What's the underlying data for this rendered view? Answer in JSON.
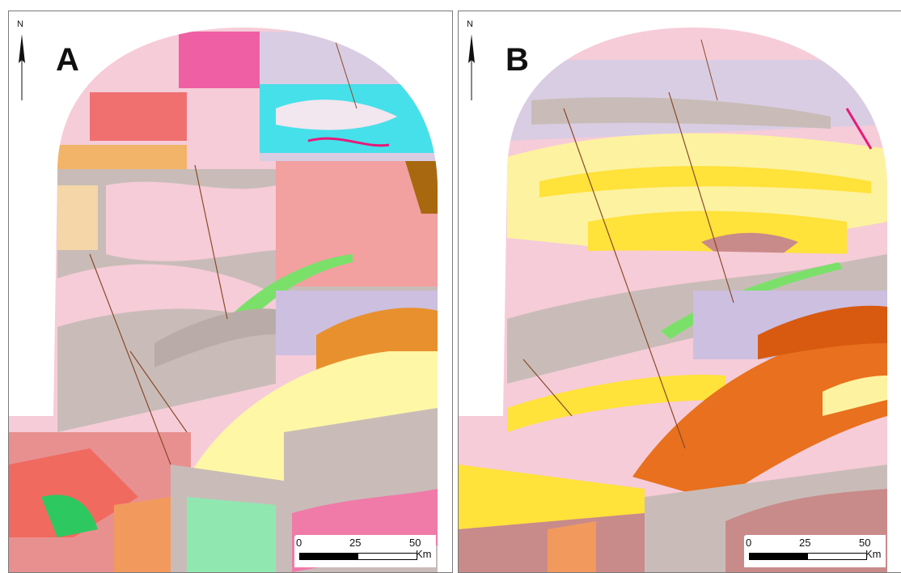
{
  "panels": [
    {
      "letter": "A",
      "north_label": "N",
      "scale": {
        "ticks": [
          "0",
          "25",
          "50"
        ],
        "unit": "Km"
      }
    },
    {
      "letter": "B",
      "north_label": "N",
      "scale": {
        "ticks": [
          "0",
          "25",
          "50"
        ],
        "unit": "Km"
      }
    }
  ],
  "colors": {
    "pink_light": "#f6ccd8",
    "grey_taupe": "#c9bcb8",
    "salmon": "#f2a0a0",
    "yellow_pale": "#fdf7a6",
    "yellow": "#ffe23a",
    "orange": "#e8701e",
    "green": "#7be06a",
    "cyan": "#46e0ea",
    "magenta": "#e8197a",
    "brown": "#a0622a",
    "lilac": "#cdbfe0"
  }
}
